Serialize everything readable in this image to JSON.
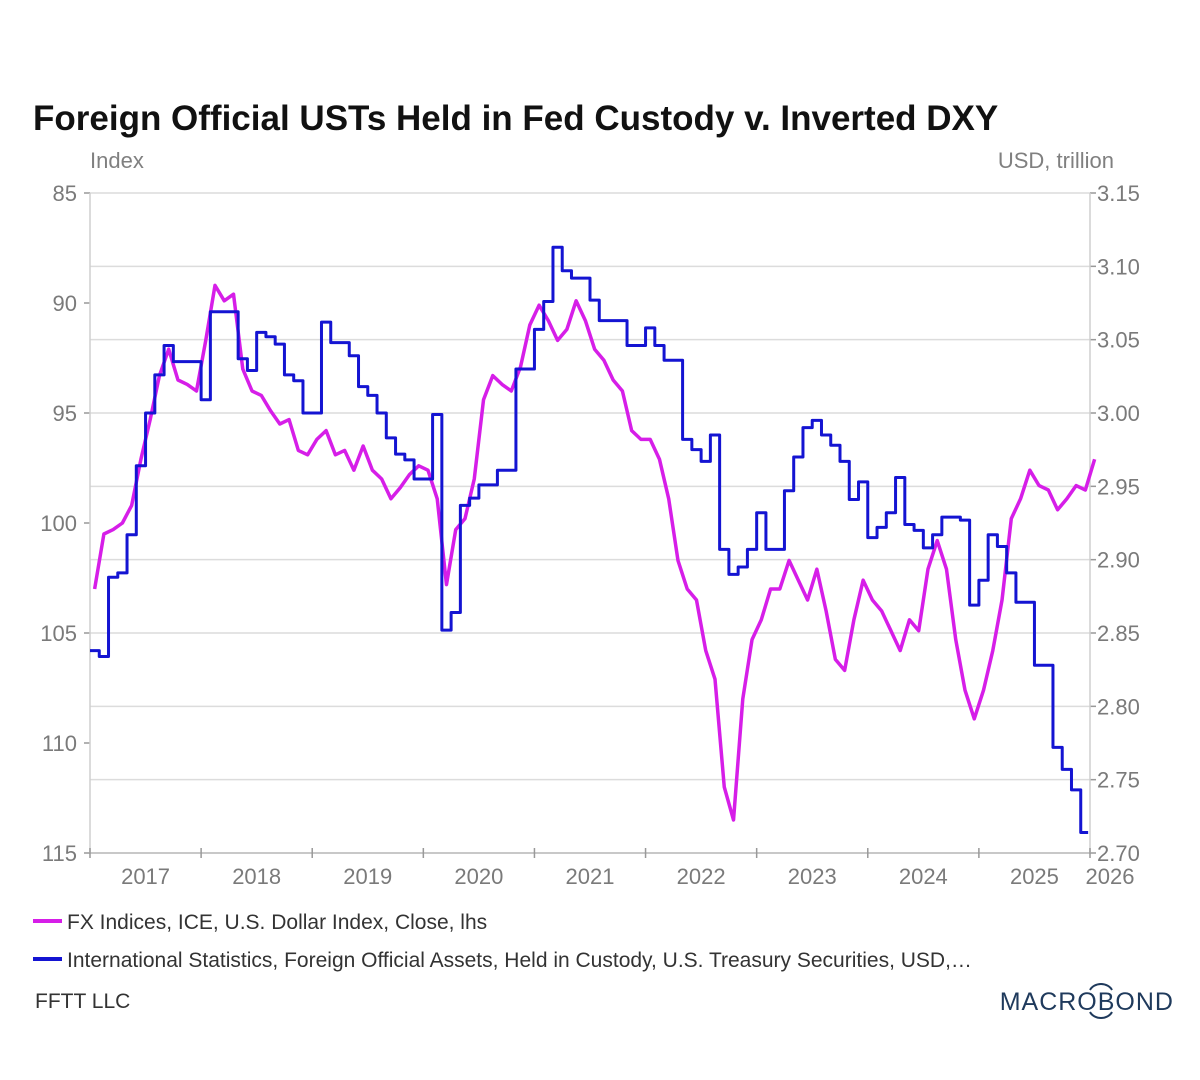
{
  "chart_data": {
    "type": "line",
    "title": "Foreign Official USTs Held in Fed Custody v. Inverted DXY",
    "ylabel_left": "Index",
    "ylabel_right": "USD, trillion",
    "left_axis": {
      "range": [
        85,
        115
      ],
      "inverted": true,
      "ticks": [
        "85",
        "90",
        "95",
        "100",
        "105",
        "110",
        "115"
      ]
    },
    "right_axis": {
      "range": [
        2.7,
        3.15
      ],
      "ticks": [
        "3.15",
        "3.10",
        "3.05",
        "3.00",
        "2.95",
        "2.90",
        "2.85",
        "2.80",
        "2.75",
        "2.70"
      ]
    },
    "x_axis": {
      "range": [
        "2017-01",
        "2026-01"
      ],
      "tick_labels": [
        "2017",
        "2018",
        "2019",
        "2020",
        "2021",
        "2022",
        "2023",
        "2024",
        "2025",
        "2026"
      ]
    },
    "grid": true,
    "legend_placement": "bottom",
    "series": [
      {
        "name": "FX Indices, ICE, U.S. Dollar Index, Close, lhs",
        "axis": "left",
        "color": "#d61ee8",
        "start": "2017-01",
        "frequency": "monthly",
        "values": [
          103.0,
          100.5,
          100.3,
          100.0,
          99.2,
          97.1,
          95.3,
          93.3,
          92.1,
          93.5,
          93.7,
          94.0,
          91.7,
          89.2,
          89.9,
          89.6,
          93.0,
          94.0,
          94.2,
          94.9,
          95.5,
          95.3,
          96.7,
          96.9,
          96.2,
          95.8,
          96.9,
          96.7,
          97.6,
          96.5,
          97.6,
          98.0,
          98.9,
          98.4,
          97.8,
          97.4,
          97.6,
          98.9,
          102.8,
          100.3,
          99.8,
          98.0,
          94.4,
          93.3,
          93.7,
          94.0,
          92.9,
          91.0,
          90.1,
          90.8,
          91.7,
          91.2,
          89.9,
          90.8,
          92.1,
          92.6,
          93.5,
          94.0,
          95.8,
          96.2,
          96.2,
          97.1,
          98.9,
          101.7,
          103.0,
          103.5,
          105.8,
          107.1,
          112.0,
          113.5,
          108.0,
          105.3,
          104.4,
          103.0,
          103.0,
          101.7,
          102.6,
          103.5,
          102.1,
          104.0,
          106.2,
          106.7,
          104.4,
          102.6,
          103.5,
          104.0,
          104.9,
          105.8,
          104.4,
          104.9,
          102.1,
          100.8,
          102.1,
          105.3,
          107.6,
          108.9,
          107.6,
          105.8,
          103.5,
          99.8,
          98.9,
          97.6,
          98.3,
          98.5,
          99.4,
          98.9,
          98.3,
          98.5,
          97.1
        ]
      },
      {
        "name": "International Statistics, Foreign Official Assets, Held in Custody, U.S. Treasury Securities, USD,…",
        "axis": "right",
        "color": "#1414d2",
        "start": "2017-01",
        "frequency": "monthly",
        "step": true,
        "values": [
          2.838,
          2.834,
          2.888,
          2.891,
          2.917,
          2.964,
          3.0,
          3.026,
          3.046,
          3.035,
          3.035,
          3.035,
          3.009,
          3.069,
          3.069,
          3.069,
          3.037,
          3.029,
          3.055,
          3.052,
          3.047,
          3.026,
          3.022,
          3.0,
          3.0,
          3.062,
          3.048,
          3.048,
          3.039,
          3.018,
          3.012,
          3.0,
          2.983,
          2.972,
          2.968,
          2.955,
          2.955,
          2.999,
          2.852,
          2.864,
          2.937,
          2.942,
          2.951,
          2.951,
          2.961,
          2.961,
          3.03,
          3.03,
          3.057,
          3.076,
          3.113,
          3.097,
          3.092,
          3.092,
          3.077,
          3.063,
          3.063,
          3.063,
          3.046,
          3.046,
          3.058,
          3.046,
          3.036,
          3.036,
          2.982,
          2.975,
          2.967,
          2.985,
          2.907,
          2.89,
          2.895,
          2.907,
          2.932,
          2.907,
          2.907,
          2.947,
          2.97,
          2.99,
          2.995,
          2.985,
          2.978,
          2.967,
          2.941,
          2.953,
          2.915,
          2.922,
          2.932,
          2.956,
          2.924,
          2.92,
          2.908,
          2.917,
          2.929,
          2.929,
          2.927,
          2.869,
          2.886,
          2.917,
          2.909,
          2.891,
          2.871,
          2.871,
          2.828,
          2.828,
          2.772,
          2.757,
          2.743,
          2.714
        ]
      }
    ]
  },
  "footer": {
    "source": "FFTT LLC",
    "logo": "MACROBOND"
  }
}
